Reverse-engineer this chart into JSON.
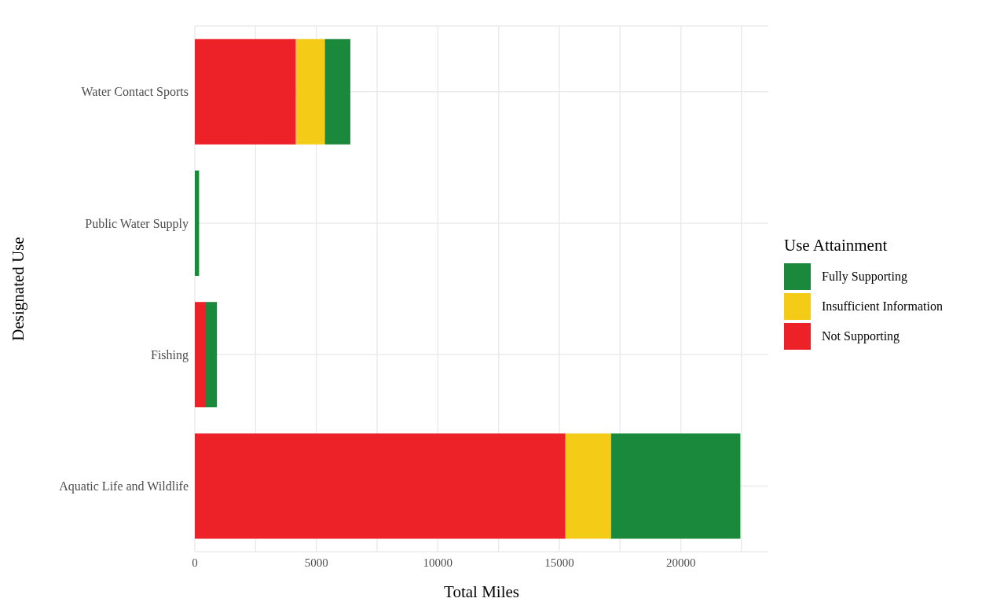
{
  "chart_data": {
    "type": "bar",
    "orientation": "horizontal",
    "stacked": true,
    "xlabel": "Total Miles",
    "ylabel": "Designated Use",
    "legend_title": "Use Attainment",
    "legend": "right",
    "grid": true,
    "categories": [
      "Water Contact Sports",
      "Public Water Supply",
      "Fishing",
      "Aquatic Life and Wildlife"
    ],
    "series": [
      {
        "name": "Not Supporting",
        "color": "#ed2128",
        "values": [
          4160,
          0,
          420,
          15250
        ]
      },
      {
        "name": "Insufficient Information",
        "color": "#f4cb16",
        "values": [
          1190,
          0,
          0,
          1880
        ]
      },
      {
        "name": "Fully Supporting",
        "color": "#1b893b",
        "values": [
          1050,
          175,
          490,
          5320
        ]
      }
    ],
    "xlim": [
      0,
      23600
    ],
    "xticks": [
      0,
      {
        "value": 2500,
        "label": null
      },
      5000,
      {
        "value": 7500,
        "label": null
      },
      10000,
      {
        "value": 12500,
        "label": null
      },
      15000,
      {
        "value": 17500,
        "label": null
      },
      20000,
      {
        "value": 22500,
        "label": null
      }
    ]
  }
}
